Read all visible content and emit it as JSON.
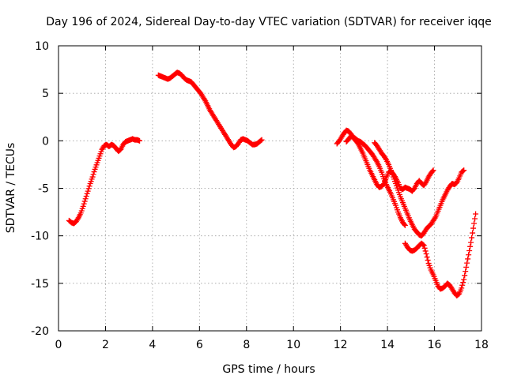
{
  "chart_data": {
    "type": "scatter",
    "title": "Day 196 of 2024, Sidereal Day-to-day VTEC variation (SDTVAR) for receiver iqqe",
    "xlabel": "GPS time / hours",
    "ylabel": "SDTVAR / TECUs",
    "xlim": [
      0,
      18
    ],
    "ylim": [
      -20,
      10
    ],
    "xticks": [
      "0",
      "2",
      "4",
      "6",
      "8",
      "10",
      "12",
      "14",
      "16",
      "18"
    ],
    "yticks": [
      "10",
      "5",
      "0",
      "-5",
      "-10",
      "-15",
      "-20"
    ],
    "grid": true,
    "marker": "plus",
    "color": "#ff0000",
    "series": [
      {
        "name": "track-1",
        "x": [
          0.45,
          0.55,
          0.65,
          0.75,
          0.85,
          0.95,
          1.05,
          1.15,
          1.25,
          1.35,
          1.45,
          1.55,
          1.65,
          1.75,
          1.85,
          1.95,
          2.05,
          2.15,
          2.25,
          2.35,
          2.45,
          2.55,
          2.65,
          2.75,
          2.85,
          2.95,
          3.05,
          3.15,
          3.25,
          3.35,
          3.45
        ],
        "y": [
          -8.4,
          -8.6,
          -8.7,
          -8.5,
          -8.1,
          -7.6,
          -6.9,
          -6.1,
          -5.3,
          -4.5,
          -3.8,
          -3.0,
          -2.3,
          -1.6,
          -0.9,
          -0.5,
          -0.4,
          -0.6,
          -0.4,
          -0.5,
          -0.8,
          -1.1,
          -0.9,
          -0.4,
          -0.1,
          0.0,
          0.1,
          0.2,
          0.1,
          0.1,
          0.0
        ]
      },
      {
        "name": "track-2",
        "x": [
          4.25,
          4.35,
          4.45,
          4.55,
          4.65,
          4.75,
          4.85,
          4.95,
          5.05,
          5.15,
          5.25,
          5.35,
          5.45,
          5.55,
          5.65,
          5.75,
          5.85,
          5.95,
          6.05,
          6.15,
          6.25,
          6.35,
          6.45,
          6.55,
          6.65,
          6.75,
          6.85,
          6.95,
          7.05,
          7.15,
          7.25,
          7.35,
          7.45,
          7.55,
          7.65,
          7.75,
          7.85,
          7.95,
          8.05,
          8.15,
          8.25,
          8.35,
          8.45,
          8.55,
          8.65
        ],
        "y": [
          6.9,
          6.8,
          6.7,
          6.6,
          6.5,
          6.6,
          6.8,
          7.0,
          7.2,
          7.1,
          6.9,
          6.6,
          6.4,
          6.3,
          6.2,
          5.9,
          5.6,
          5.3,
          5.0,
          4.6,
          4.2,
          3.7,
          3.2,
          2.8,
          2.4,
          2.0,
          1.6,
          1.2,
          0.8,
          0.4,
          0.0,
          -0.4,
          -0.7,
          -0.6,
          -0.3,
          0.1,
          0.2,
          0.1,
          0.0,
          -0.2,
          -0.4,
          -0.4,
          -0.3,
          -0.1,
          0.1
        ]
      },
      {
        "name": "track-3",
        "x": [
          11.85,
          11.95,
          12.05,
          12.15,
          12.25,
          12.35,
          12.45,
          12.55,
          12.65,
          12.75,
          12.85,
          12.95,
          13.05,
          13.15,
          13.25,
          13.35,
          13.45,
          13.55,
          13.65,
          13.75,
          13.85,
          13.95,
          14.05,
          14.15,
          14.25,
          14.35,
          14.45,
          14.55,
          14.65,
          14.75,
          14.85,
          14.95,
          15.05,
          15.15,
          15.25,
          15.35,
          15.45,
          15.55,
          15.65,
          15.75,
          15.85,
          15.95
        ],
        "y": [
          -0.3,
          0.0,
          0.4,
          0.8,
          1.1,
          1.0,
          0.7,
          0.3,
          0.0,
          -0.3,
          -0.8,
          -1.3,
          -1.9,
          -2.5,
          -3.1,
          -3.6,
          -4.1,
          -4.6,
          -4.9,
          -4.8,
          -4.5,
          -3.9,
          -3.3,
          -3.2,
          -3.5,
          -3.9,
          -4.4,
          -5.0,
          -5.1,
          -4.9,
          -5.0,
          -5.1,
          -5.3,
          -5.0,
          -4.5,
          -4.2,
          -4.5,
          -4.7,
          -4.3,
          -3.8,
          -3.4,
          -3.1
        ]
      },
      {
        "name": "track-4",
        "x": [
          12.25,
          12.35,
          12.45,
          12.55,
          12.65,
          12.75,
          12.85,
          12.95,
          13.05,
          13.15,
          13.25,
          13.35,
          13.45,
          13.55,
          13.65,
          13.75,
          13.85,
          13.95,
          14.05,
          14.15,
          14.25,
          14.35,
          14.45,
          14.55,
          14.65,
          14.75
        ],
        "y": [
          -0.1,
          0.2,
          0.5,
          0.4,
          0.2,
          0.0,
          -0.1,
          -0.3,
          -0.5,
          -0.8,
          -1.1,
          -1.4,
          -1.8,
          -2.2,
          -2.7,
          -3.3,
          -4.0,
          -4.6,
          -5.1,
          -5.6,
          -6.2,
          -6.8,
          -7.5,
          -8.1,
          -8.6,
          -8.9
        ]
      },
      {
        "name": "track-5",
        "x": [
          13.45,
          13.55,
          13.65,
          13.75,
          13.85,
          13.95,
          14.05,
          14.15,
          14.25,
          14.35,
          14.45,
          14.55,
          14.65,
          14.75,
          14.85,
          14.95,
          15.05,
          15.15,
          15.25,
          15.35,
          15.45,
          15.55,
          15.65,
          15.75,
          15.85,
          15.95,
          16.05,
          16.15,
          16.25,
          16.35,
          16.45,
          16.55,
          16.65,
          16.75,
          16.85,
          16.95,
          17.05,
          17.15,
          17.25
        ],
        "y": [
          -0.2,
          -0.5,
          -0.9,
          -1.3,
          -1.6,
          -2.0,
          -2.5,
          -3.1,
          -3.8,
          -4.5,
          -5.2,
          -5.9,
          -6.5,
          -7.1,
          -7.7,
          -8.3,
          -8.8,
          -9.3,
          -9.6,
          -9.9,
          -10.0,
          -9.7,
          -9.3,
          -9.0,
          -8.8,
          -8.4,
          -8.0,
          -7.4,
          -6.8,
          -6.2,
          -5.7,
          -5.2,
          -4.8,
          -4.5,
          -4.6,
          -4.4,
          -3.9,
          -3.3,
          -3.1
        ]
      },
      {
        "name": "track-6",
        "x": [
          14.75,
          14.85,
          14.95,
          15.05,
          15.15,
          15.25,
          15.35,
          15.45,
          15.55,
          15.65,
          15.75,
          15.85,
          15.95,
          16.05,
          16.15,
          16.25,
          16.35,
          16.45,
          16.55,
          16.65,
          16.75,
          16.85,
          16.95,
          17.05,
          17.15,
          17.25,
          17.35,
          17.45,
          17.55,
          17.65,
          17.75
        ],
        "y": [
          -10.8,
          -11.2,
          -11.5,
          -11.6,
          -11.5,
          -11.3,
          -11.0,
          -10.8,
          -11.0,
          -11.9,
          -12.9,
          -13.6,
          -14.1,
          -14.7,
          -15.3,
          -15.6,
          -15.5,
          -15.3,
          -15.0,
          -15.2,
          -15.6,
          -16.0,
          -16.3,
          -16.1,
          -15.5,
          -14.6,
          -13.3,
          -12.0,
          -10.7,
          -9.2,
          -7.7
        ]
      }
    ]
  }
}
